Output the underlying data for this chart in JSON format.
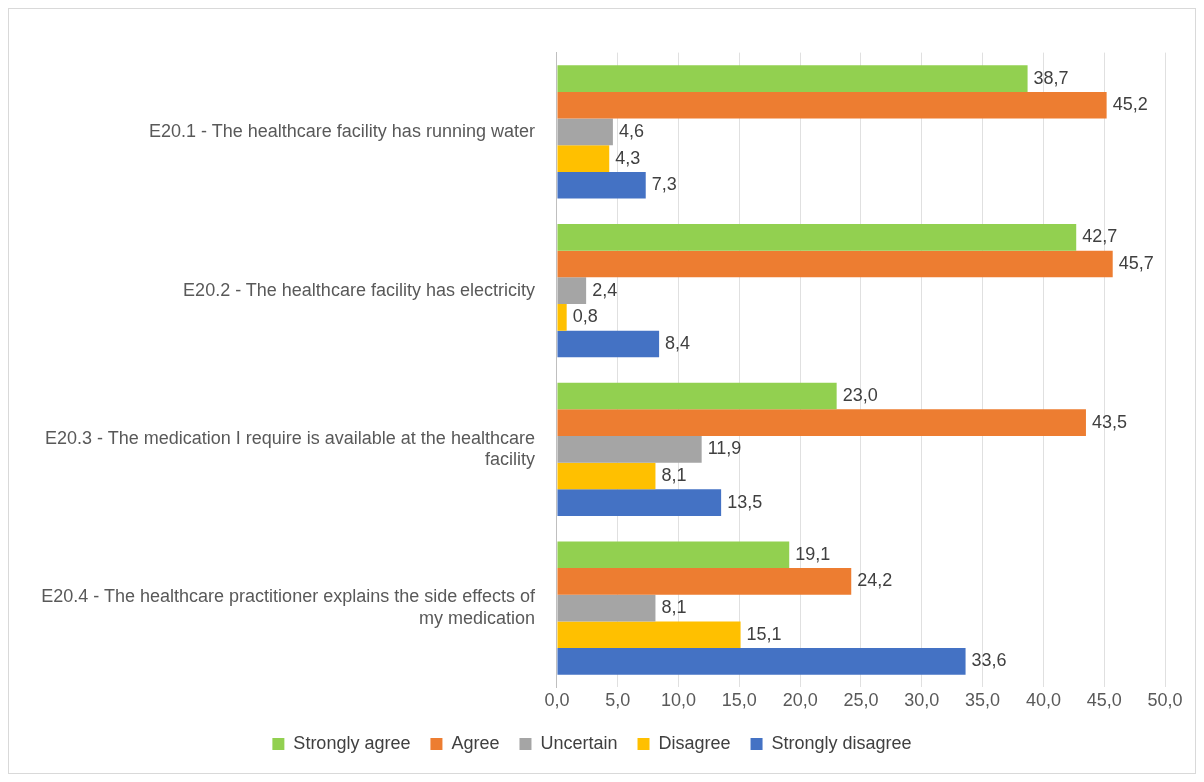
{
  "chart_data": {
    "type": "bar",
    "orientation": "horizontal",
    "categories": [
      "E20.1 - The healthcare facility has running water",
      "E20.2 - The healthcare facility has electricity",
      "E20.3 - The medication I require is available at the healthcare facility",
      "E20.4 - The healthcare practitioner explains the side effects of my medication"
    ],
    "series": [
      {
        "name": "Strongly agree",
        "color": "#92d050",
        "values": [
          38.7,
          42.7,
          23.0,
          19.1
        ],
        "value_labels": [
          "38,7",
          "42,7",
          "23,0",
          "19,1"
        ]
      },
      {
        "name": "Agree",
        "color": "#ed7d31",
        "values": [
          45.2,
          45.7,
          43.5,
          24.2
        ],
        "value_labels": [
          "45,2",
          "45,7",
          "43,5",
          "24,2"
        ]
      },
      {
        "name": "Uncertain",
        "color": "#a5a5a5",
        "values": [
          4.6,
          2.4,
          11.9,
          8.1
        ],
        "value_labels": [
          "4,6",
          "2,4",
          "11,9",
          "8,1"
        ]
      },
      {
        "name": "Disagree",
        "color": "#ffc000",
        "values": [
          4.3,
          0.8,
          8.1,
          15.1
        ],
        "value_labels": [
          "4,3",
          "0,8",
          "8,1",
          "15,1"
        ]
      },
      {
        "name": "Strongly disagree",
        "color": "#4472c4",
        "values": [
          7.3,
          8.4,
          13.5,
          33.6
        ],
        "value_labels": [
          "7,3",
          "8,4",
          "13,5",
          "33,6"
        ]
      }
    ],
    "xlim": [
      0,
      50
    ],
    "xticks": [
      {
        "value": 0,
        "label": "0,0"
      },
      {
        "value": 5,
        "label": "5,0"
      },
      {
        "value": 10,
        "label": "10,0"
      },
      {
        "value": 15,
        "label": "15,0"
      },
      {
        "value": 20,
        "label": "20,0"
      },
      {
        "value": 25,
        "label": "25,0"
      },
      {
        "value": 30,
        "label": "30,0"
      },
      {
        "value": 35,
        "label": "35,0"
      },
      {
        "value": 40,
        "label": "40,0"
      },
      {
        "value": 45,
        "label": "45,0"
      },
      {
        "value": 50,
        "label": "50,0"
      }
    ],
    "grid": "x",
    "legend": "bottom"
  }
}
